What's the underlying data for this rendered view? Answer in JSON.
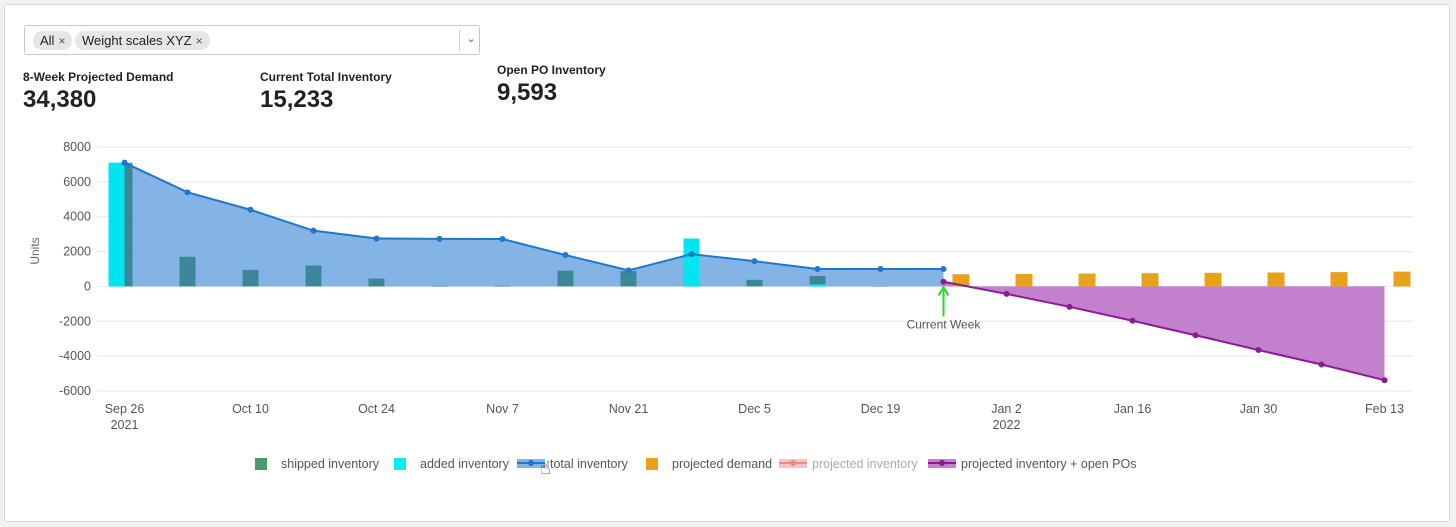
{
  "filter": {
    "chips": [
      {
        "label": "All"
      },
      {
        "label": "Weight scales XYZ"
      }
    ],
    "close_glyph": "×",
    "dropdown_glyph": "⌄"
  },
  "kpis": [
    {
      "label": "8-Week Projected Demand",
      "value": "34,380"
    },
    {
      "label": "Current Total Inventory",
      "value": "15,233"
    },
    {
      "label": "Open PO Inventory",
      "value": "9,593"
    }
  ],
  "chart_data": {
    "type": "bar+area",
    "ylabel": "Units",
    "ylim": [
      -6000,
      8000
    ],
    "yticks": [
      8000,
      6000,
      4000,
      2000,
      0,
      -2000,
      -4000,
      -6000
    ],
    "x_start_date": "2021-09-26",
    "x_tick_labels": [
      {
        "label": "Sep 26",
        "sub": "2021"
      },
      {
        "label": "Oct 10",
        "sub": ""
      },
      {
        "label": "Oct 24",
        "sub": ""
      },
      {
        "label": "Nov 7",
        "sub": ""
      },
      {
        "label": "Nov 21",
        "sub": ""
      },
      {
        "label": "Dec 5",
        "sub": ""
      },
      {
        "label": "Dec 19",
        "sub": ""
      },
      {
        "label": "Jan 2",
        "sub": "2022"
      },
      {
        "label": "Jan 16",
        "sub": ""
      },
      {
        "label": "Jan 30",
        "sub": ""
      },
      {
        "label": "Feb 13",
        "sub": ""
      }
    ],
    "x_weeks": [
      "Sep 26",
      "Oct 3",
      "Oct 10",
      "Oct 17",
      "Oct 24",
      "Oct 31",
      "Nov 7",
      "Nov 14",
      "Nov 21",
      "Nov 28",
      "Dec 5",
      "Dec 12",
      "Dec 19",
      "Dec 26"
    ],
    "total_inventory": [
      7100,
      5400,
      4400,
      3200,
      2750,
      2730,
      2720,
      1800,
      920,
      1850,
      1450,
      1000,
      1000,
      1000
    ],
    "shipped_inventory": [
      7100,
      1700,
      950,
      1200,
      450,
      40,
      40,
      900,
      880,
      1850,
      380,
      600,
      20,
      0
    ],
    "added_inventory": [
      7100,
      0,
      0,
      0,
      0,
      0,
      0,
      0,
      0,
      2750,
      0,
      120,
      0,
      0
    ],
    "projected_weeks": [
      "Dec 26",
      "Jan 2",
      "Jan 9",
      "Jan 16",
      "Jan 23",
      "Jan 30",
      "Feb 6",
      "Feb 13"
    ],
    "projected_demand": [
      700,
      720,
      740,
      760,
      780,
      800,
      820,
      850
    ],
    "projected_inventory_plus_open_pos": [
      270,
      -430,
      -1170,
      -1970,
      -2800,
      -3650,
      -4480,
      -5380
    ],
    "annotation": {
      "label": "Current Week",
      "week": "Dec 26"
    },
    "legend": [
      {
        "name": "shipped inventory",
        "color": "#4c9a6a",
        "kind": "box",
        "dim": false
      },
      {
        "name": "added inventory",
        "color": "#00f0f0",
        "kind": "box",
        "dim": false
      },
      {
        "name": "total inventory",
        "color": "#1f77c9",
        "kind": "line",
        "dim": false
      },
      {
        "name": "projected demand",
        "color": "#e7a11b",
        "kind": "box",
        "dim": false
      },
      {
        "name": "projected inventory",
        "color": "#e88a8a",
        "kind": "line",
        "dim": true
      },
      {
        "name": "projected inventory + open POs",
        "color": "#8b1a96",
        "kind": "line",
        "dim": false
      }
    ],
    "colors": {
      "total_fill": "#6fa6e0",
      "total_line": "#1f77c9",
      "shipped": "#2f7f8a",
      "added": "#00e5f0",
      "demand": "#e7a11b",
      "proj_fill": "#b96bc4",
      "proj_line": "#8b1a96",
      "current_week": "#22dd22",
      "grid": "#e6e6e6"
    }
  }
}
